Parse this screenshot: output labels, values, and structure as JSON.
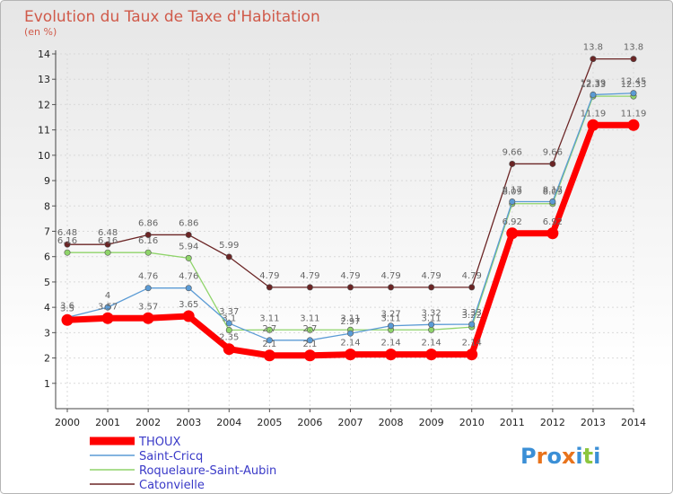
{
  "chart_data": {
    "type": "line",
    "title": "Evolution du Taux de Taxe d'Habitation",
    "subtitle": "(en %)",
    "x": [
      2000,
      2001,
      2002,
      2003,
      2004,
      2005,
      2006,
      2007,
      2008,
      2009,
      2010,
      2011,
      2012,
      2013,
      2014
    ],
    "ylim": [
      0,
      14
    ],
    "yticks": [
      1,
      2,
      3,
      4,
      5,
      6,
      7,
      8,
      9,
      10,
      11,
      12,
      13,
      14
    ],
    "grid": true,
    "legend_position": "bottom-left",
    "series": [
      {
        "name": "THOUX",
        "color": "#ff0000",
        "values": [
          3.5,
          3.57,
          3.57,
          3.65,
          2.35,
          2.1,
          2.1,
          2.14,
          2.14,
          2.14,
          2.14,
          6.92,
          6.92,
          11.19,
          11.19
        ],
        "labels": [
          "3.5",
          "3.57",
          "3.57",
          "3.65",
          "2.35",
          "2.1",
          "2.1",
          "2.14",
          "2.14",
          "2.14",
          "2.14",
          "6.92",
          "6.92",
          "11.19",
          "11.19"
        ]
      },
      {
        "name": "Saint-Cricq",
        "color": "#5b9bd5",
        "values": [
          3.6,
          4.0,
          4.76,
          4.76,
          3.37,
          2.7,
          2.7,
          2.97,
          3.27,
          3.32,
          3.33,
          8.17,
          8.17,
          12.39,
          12.45
        ],
        "labels": [
          "3.6",
          "4",
          "4.76",
          "4.76",
          "3.37",
          "2.7",
          "2.7",
          "2.97",
          "3.27",
          "3.32",
          "3.33",
          "8.17",
          "8.17",
          "12.39",
          "12.45"
        ]
      },
      {
        "name": "Roquelaure-Saint-Aubin",
        "color": "#8fd46a",
        "values": [
          6.16,
          6.16,
          6.16,
          5.94,
          3.1,
          3.11,
          3.11,
          3.11,
          3.11,
          3.11,
          3.22,
          8.09,
          8.09,
          12.33,
          12.33
        ],
        "labels": [
          "6.16",
          "6.16",
          "6.16",
          "5.94",
          "3.1",
          "3.11",
          "3.11",
          "3.11",
          "3.11",
          "3.11",
          "3.22",
          "8.09",
          "8.09",
          "12.33",
          "12.33"
        ]
      },
      {
        "name": "Catonvielle",
        "color": "#6b2525",
        "values": [
          6.48,
          6.48,
          6.86,
          6.86,
          5.99,
          4.79,
          4.79,
          4.79,
          4.79,
          4.79,
          4.79,
          9.66,
          9.66,
          13.8,
          13.8
        ],
        "labels": [
          "6.48",
          "6.48",
          "6.86",
          "6.86",
          "5.99",
          "4.79",
          "4.79",
          "4.79",
          "4.79",
          "4.79",
          "4.79",
          "9.66",
          "9.66",
          "13.8",
          "13.8"
        ]
      }
    ]
  },
  "logo": {
    "letters": [
      "P",
      "r",
      "o",
      "x",
      "i",
      "t",
      "i"
    ],
    "colors": [
      "#3b8fd6",
      "#e8731c",
      "#3b8fd6",
      "#e8731c",
      "#3b8fd6",
      "#8cc63e",
      "#3b8fd6"
    ]
  }
}
